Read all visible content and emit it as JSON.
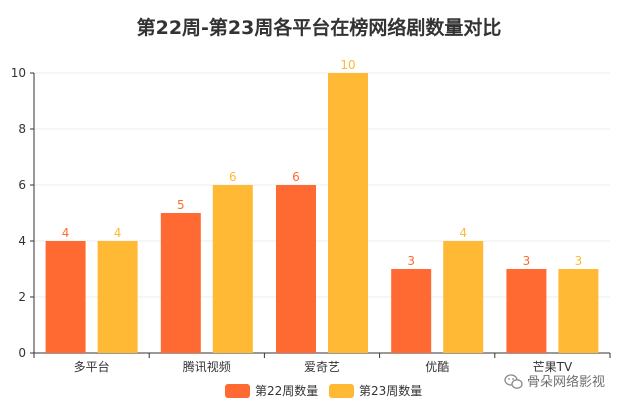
{
  "chart_data": {
    "type": "bar",
    "title": "第22周-第23周各平台在榜网络剧数量对比",
    "categories": [
      "多平台",
      "腾讯视频",
      "爱奇艺",
      "优酷",
      "芒果TV"
    ],
    "series": [
      {
        "name": "第22周数量",
        "values": [
          4,
          5,
          6,
          3,
          3
        ],
        "color": "#ff6a33"
      },
      {
        "name": "第23周数量",
        "values": [
          4,
          6,
          10,
          4,
          3
        ],
        "color": "#ffb934"
      }
    ],
    "ylim": [
      0,
      10
    ],
    "yticks": [
      0,
      2,
      4,
      6,
      8,
      10
    ],
    "grid": true,
    "legend_position": "bottom-center",
    "xlabel": "",
    "ylabel": ""
  },
  "watermark": {
    "text": "骨朵网络影视",
    "icon": "wechat-icon"
  }
}
